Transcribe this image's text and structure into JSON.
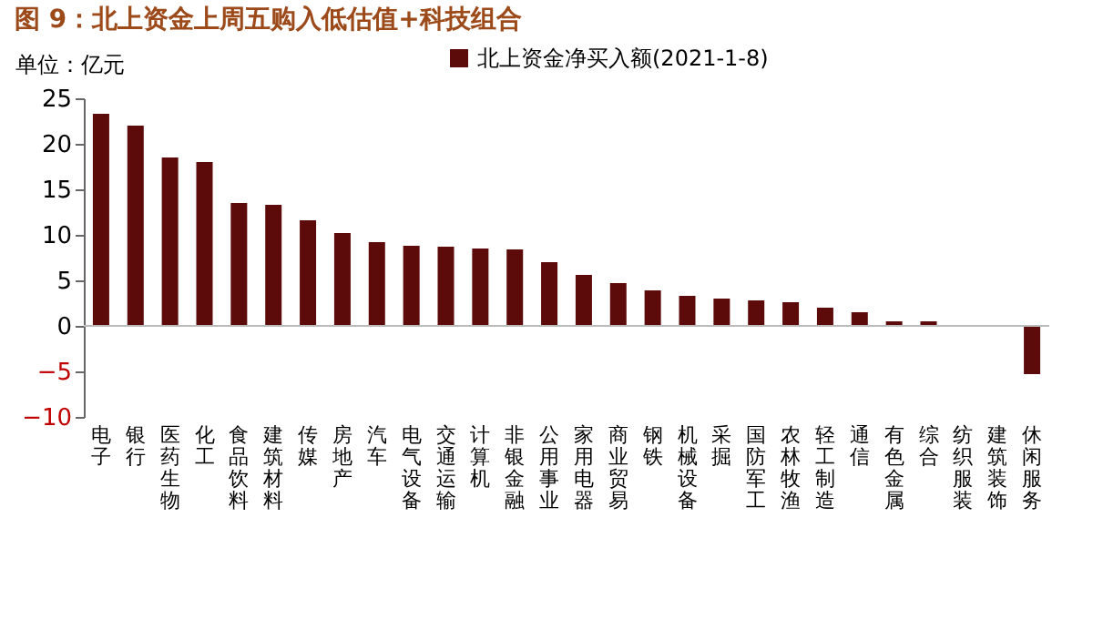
{
  "chart_data": {
    "type": "bar",
    "title": "图 9：北上资金上周五购入低估值+科技组合",
    "ylabel": "单位：亿元",
    "categories": [
      "电子",
      "银行",
      "医药生物",
      "化工",
      "食品饮料",
      "建筑材料",
      "传媒",
      "房地产",
      "汽车",
      "电气设备",
      "交通运输",
      "计算机",
      "非银金融",
      "公用事业",
      "家用电器",
      "商业贸易",
      "钢铁",
      "机械设备",
      "采掘",
      "国防军工",
      "农林牧渔",
      "轻工制造",
      "通信",
      "有色金属",
      "综合",
      "纺织服装",
      "建筑装饰",
      "休闲服务"
    ],
    "series": [
      {
        "name": "北上资金净买入额(2021-1-8)",
        "color": "#5c0a0a",
        "values": [
          23.3,
          22.0,
          18.5,
          18.0,
          13.5,
          13.3,
          11.6,
          10.2,
          9.2,
          8.8,
          8.7,
          8.5,
          8.4,
          7.0,
          5.6,
          4.7,
          3.9,
          3.3,
          3.0,
          2.8,
          2.6,
          2.0,
          1.5,
          0.5,
          0.5,
          0,
          0,
          -5.3
        ]
      }
    ],
    "ylim": [
      -10,
      25
    ],
    "yticks": [
      -10,
      -5,
      0,
      5,
      10,
      15,
      20,
      25
    ],
    "grid": false,
    "legend": "top",
    "ref_lines": [
      {
        "axis": "y",
        "value": 0,
        "color": "#bbbbbb"
      }
    ]
  }
}
